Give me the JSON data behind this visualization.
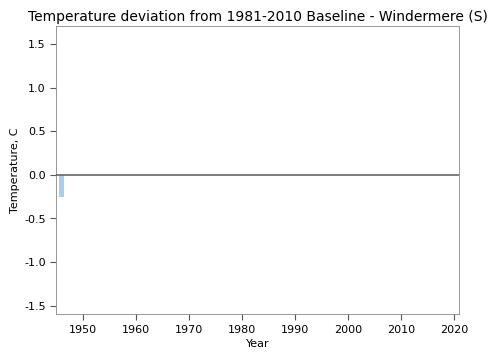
{
  "title": "Temperature deviation from 1981-2010 Baseline - Windermere (S)",
  "xlabel": "Year",
  "ylabel": "Temperature, C",
  "xlim": [
    1945,
    2021
  ],
  "ylim": [
    -1.6,
    1.7
  ],
  "yticks": [
    -1.5,
    -1.0,
    -0.5,
    0.0,
    0.5,
    1.0,
    1.5
  ],
  "xticks": [
    1950,
    1960,
    1970,
    1980,
    1990,
    2000,
    2010,
    2020
  ],
  "data_year": [
    1946
  ],
  "data_value": [
    -0.25
  ],
  "bar_color": "#aaccee",
  "line_color": "#666666",
  "line_y": 0.0,
  "background_color": "#ffffff",
  "title_fontsize": 10,
  "axis_fontsize": 8,
  "tick_fontsize": 8
}
